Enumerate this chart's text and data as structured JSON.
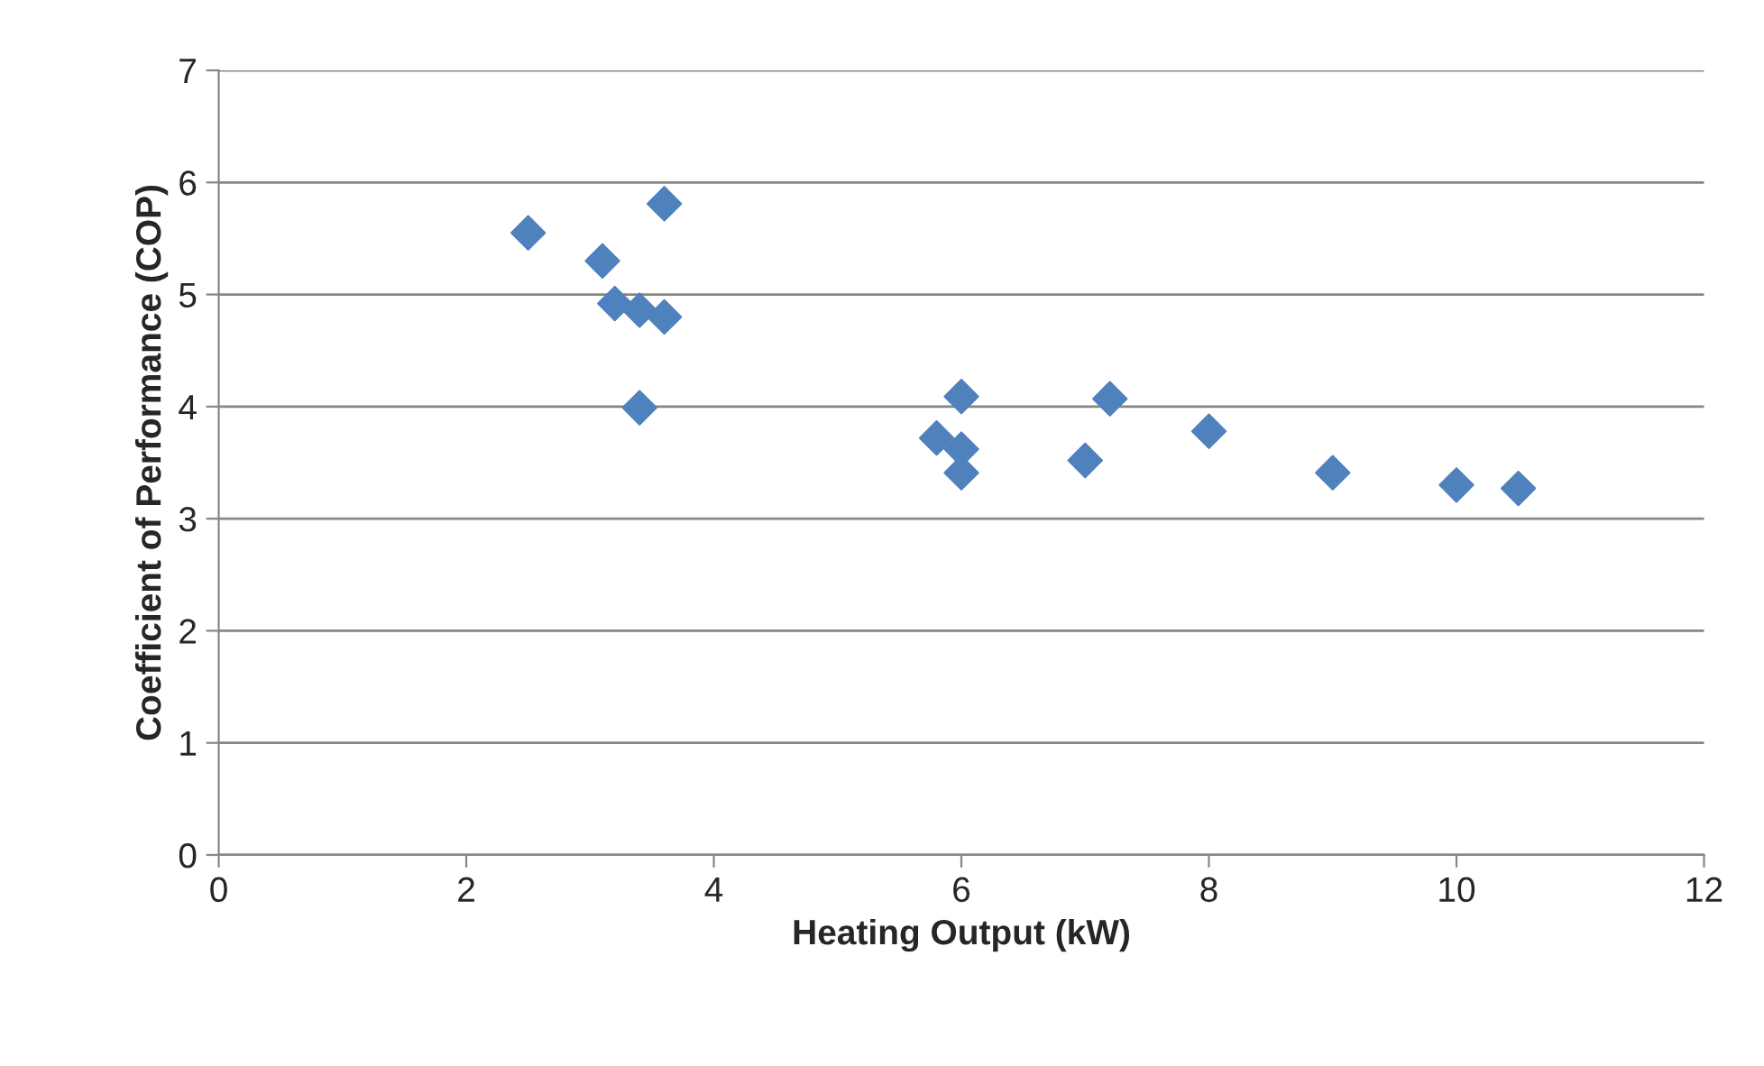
{
  "chart_data": {
    "type": "scatter",
    "xlabel": "Heating Output (kW)",
    "ylabel": "Coefficient of Performance (COP)",
    "x": [
      2.5,
      3.1,
      3.2,
      3.4,
      3.6,
      3.6,
      3.4,
      5.8,
      6.0,
      6.0,
      6.0,
      7.0,
      7.2,
      8.0,
      9.0,
      10.0,
      10.5
    ],
    "series": [
      {
        "color": "#4f81bd",
        "values": [
          5.55,
          5.3,
          4.92,
          4.86,
          5.81,
          4.8,
          3.99,
          3.72,
          4.09,
          3.62,
          3.41,
          3.52,
          4.07,
          3.78,
          3.41,
          3.3,
          3.27
        ]
      }
    ],
    "xlim": [
      0,
      12
    ],
    "xticks": [
      0,
      2,
      4,
      6,
      8,
      10,
      12
    ],
    "ylim": [
      0,
      7
    ],
    "yticks": [
      0,
      1,
      2,
      3,
      4,
      5,
      6,
      7
    ],
    "grid": "y",
    "marker": "diamond",
    "legend": false
  }
}
